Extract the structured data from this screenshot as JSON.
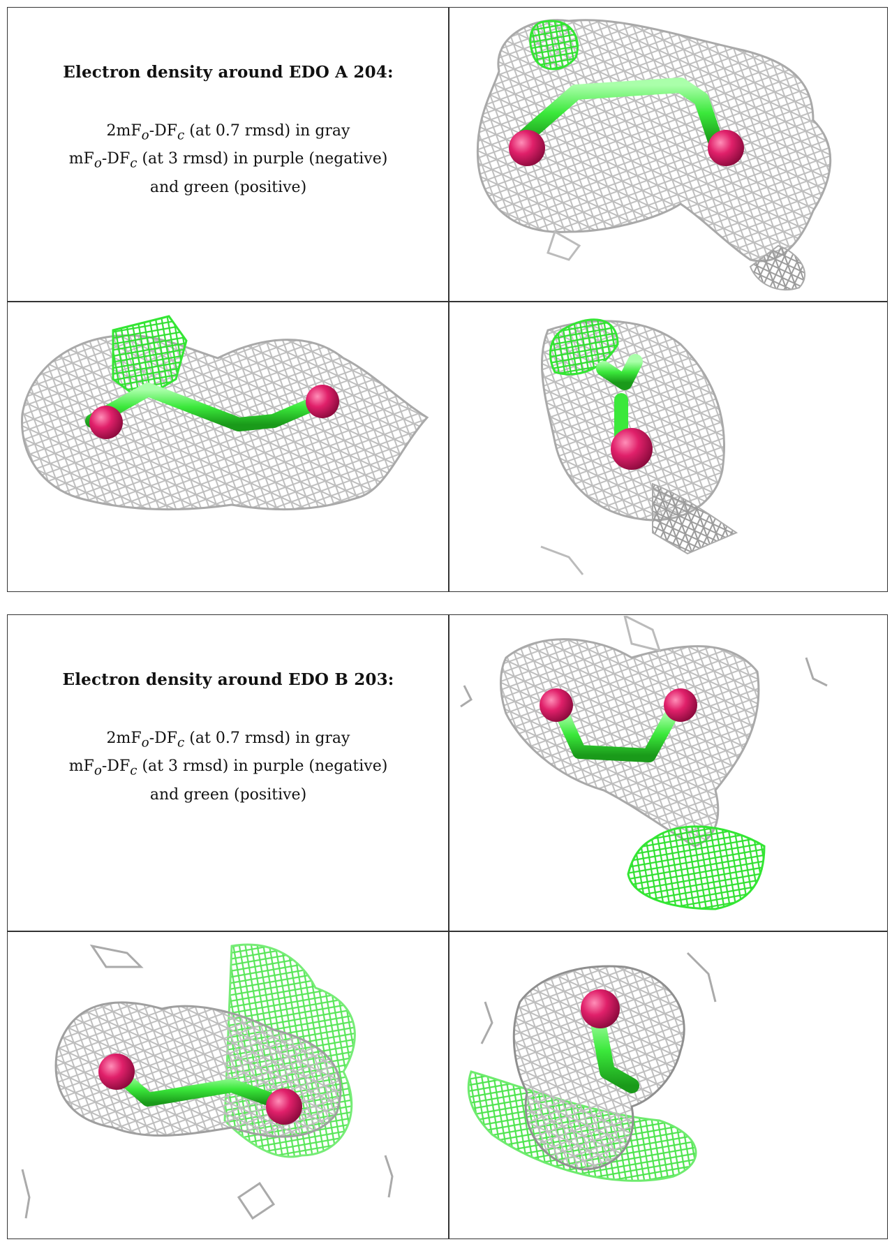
{
  "table1": {
    "title": "Electron density around EDO A 204:",
    "line1_prefix": "2mF",
    "line1_sub1": "o",
    "line1_mid": "-DF",
    "line1_sub2": "c",
    "line1_suffix": " (at 0.7 rmsd) in gray",
    "line2_prefix": "mF",
    "line2_sub1": "o",
    "line2_mid": "-DF",
    "line2_sub2": "c",
    "line2_suffix": " (at 3 rmsd) in purple (negative)",
    "line3": "and green (positive)"
  },
  "table2": {
    "title": "Electron density around EDO B 203:",
    "line1_prefix": "2mF",
    "line1_sub1": "o",
    "line1_mid": "-DF",
    "line1_sub2": "c",
    "line1_suffix": " (at 0.7 rmsd) in gray",
    "line2_prefix": "mF",
    "line2_sub1": "o",
    "line2_mid": "-DF",
    "line2_sub2": "c",
    "line2_suffix": " (at 3 rmsd) in purple (negative)",
    "line3": "and green (positive)"
  },
  "colors": {
    "mesh_gray": "#b8b8b8",
    "mesh_gray_dark": "#8e8e8e",
    "mesh_green": "#33e633",
    "stick_green": "#4cf04c",
    "oxygen": "#e0206a"
  }
}
